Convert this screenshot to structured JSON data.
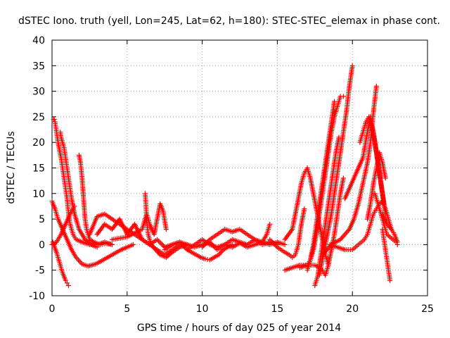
{
  "chart_data": {
    "type": "scatter",
    "title": "dSTEC Iono. truth (yell, Lon=245, Lat=62, h=180): STEC-STEC_elemax in phase cont.",
    "xlabel": "GPS time / hours of day 025 of year 2014",
    "ylabel": "dSTEC  / TECUs",
    "xlim": [
      0,
      25
    ],
    "ylim": [
      -10,
      40
    ],
    "xticks": [
      0,
      5,
      10,
      15,
      20,
      25
    ],
    "yticks": [
      -10,
      -5,
      0,
      5,
      10,
      15,
      20,
      25,
      30,
      35,
      40
    ],
    "xtick_labels": [
      "0",
      "5",
      "10",
      "15",
      "20",
      "25"
    ],
    "ytick_labels": [
      "-10",
      "-5",
      "0",
      "5",
      "10",
      "15",
      "20",
      "25",
      "30",
      "35",
      "40"
    ],
    "grid": true,
    "legend": "none",
    "marker": "+",
    "color": "#ff0000",
    "series": [
      {
        "x": [
          0.05,
          0.3,
          0.5,
          0.7,
          0.9,
          1.0,
          1.1
        ],
        "y": [
          0.5,
          -1.5,
          -3.5,
          -5.5,
          -7,
          -7.5,
          -8
        ]
      },
      {
        "x": [
          0.0,
          0.2,
          0.4,
          0.7,
          1.0,
          1.3,
          1.6,
          2.0,
          2.4,
          2.9,
          3.4,
          4.0,
          4.6,
          5.0,
          5.4
        ],
        "y": [
          8.5,
          7,
          5,
          3,
          1,
          -1,
          -2.5,
          -3.8,
          -4.2,
          -3.8,
          -3,
          -2,
          -1,
          -0.5,
          0
        ]
      },
      {
        "x": [
          0.1,
          0.15,
          0.2,
          0.3,
          0.4,
          0.5,
          0.6,
          0.7,
          0.8,
          0.9,
          1.0,
          1.1,
          1.2,
          1.4,
          1.6,
          2.0,
          2.5,
          3.0,
          3.5,
          4.0
        ],
        "y": [
          24.5,
          24.5,
          24,
          22,
          20,
          18.5,
          17,
          15,
          13,
          11,
          9,
          6,
          4,
          2,
          1,
          0.5,
          0,
          0,
          0.5,
          0
        ]
      },
      {
        "x": [
          0.55,
          0.6,
          0.7,
          0.8,
          0.9,
          1.0,
          1.1,
          1.2,
          1.3,
          1.5,
          1.8,
          2.2,
          2.6,
          3.0
        ],
        "y": [
          22,
          21,
          20,
          19,
          17,
          15,
          13,
          11,
          9,
          6,
          3,
          1,
          0,
          -0.5
        ]
      },
      {
        "x": [
          0.0,
          0.3,
          0.6,
          0.9,
          1.2,
          1.5
        ],
        "y": [
          0,
          0.5,
          2,
          4,
          6,
          7.5
        ]
      },
      {
        "x": [
          1.8,
          1.9,
          2.0,
          2.1,
          2.2,
          2.3,
          2.5,
          2.8,
          3.2,
          3.6,
          4.0
        ],
        "y": [
          17.5,
          16,
          13,
          9,
          5,
          3,
          1,
          0.5,
          0,
          0.2,
          0
        ]
      },
      {
        "x": [
          2.5,
          3.0,
          3.5,
          4.0,
          4.5,
          5.0,
          5.5,
          6.0,
          6.5,
          7.0,
          7.5,
          8.0,
          8.5,
          9.0
        ],
        "y": [
          2,
          5.5,
          6,
          5,
          4,
          3,
          2,
          1,
          0,
          -1,
          -2,
          -1,
          0,
          0
        ]
      },
      {
        "x": [
          3.0,
          3.5,
          4.0,
          4.5,
          5.0,
          5.5,
          6.0,
          6.5,
          7.0,
          7.5,
          8.0,
          8.5,
          9.0,
          9.5,
          10.0,
          10.5,
          11.0,
          11.5,
          12.0,
          12.5,
          13.0,
          13.5,
          14.0,
          14.5,
          15.0
        ],
        "y": [
          2,
          4,
          3,
          5,
          2,
          4,
          1,
          0,
          1,
          -0.5,
          0,
          0.5,
          -1,
          0,
          1,
          0,
          -0.5,
          0,
          1,
          0.5,
          0,
          1,
          0,
          0.5,
          0
        ]
      },
      {
        "x": [
          4.0,
          5.0,
          6.0,
          6.3,
          6.5,
          6.8,
          7.0,
          7.2,
          7.4,
          7.6
        ],
        "y": [
          1,
          1.5,
          3,
          6,
          4,
          2,
          5,
          8,
          6.5,
          3
        ]
      },
      {
        "x": [
          6.2,
          6.25,
          6.3,
          6.4,
          6.6,
          6.9,
          7.2,
          7.6,
          8.0,
          8.5,
          9.0
        ],
        "y": [
          10,
          8,
          5,
          2,
          0,
          -1,
          -2,
          -2.5,
          -1.5,
          -0.5,
          0
        ]
      },
      {
        "x": [
          7.5,
          8.0,
          8.5,
          9.0,
          9.5,
          10.0,
          10.5,
          11.0,
          11.5,
          12.0,
          12.5,
          13.0,
          13.5,
          14.0,
          14.5,
          15.0,
          15.5
        ],
        "y": [
          -1,
          0,
          0.5,
          0,
          -0.5,
          0,
          0.5,
          -1,
          0,
          -0.5,
          0.3,
          -0.5,
          0,
          0.5,
          0,
          0.5,
          0
        ]
      },
      {
        "x": [
          9.0,
          9.3,
          9.6,
          9.9,
          10.2,
          10.5,
          10.8,
          11.1,
          11.4,
          11.7,
          12.0
        ],
        "y": [
          -1,
          -1.5,
          -2,
          -2.5,
          -2.8,
          -3,
          -2.5,
          -2,
          -1,
          -0.5,
          0
        ]
      },
      {
        "x": [
          10.0,
          10.5,
          11.0,
          11.5,
          12.0,
          12.5,
          13.0,
          13.5,
          14.0,
          14.3,
          14.5
        ],
        "y": [
          -0.5,
          1,
          2,
          3,
          2.5,
          3,
          2,
          1,
          0.5,
          2,
          4
        ]
      },
      {
        "x": [
          14.5,
          15.0,
          15.5,
          15.8,
          16.0,
          16.2,
          16.4,
          16.6,
          16.8
        ],
        "y": [
          1,
          -0.5,
          -1.5,
          -2,
          -2.5,
          -2,
          0,
          4,
          7
        ]
      },
      {
        "x": [
          15.5,
          16.0,
          16.2,
          16.4,
          16.6,
          16.8,
          17.0,
          17.2,
          17.4,
          17.6,
          17.8,
          18.0,
          18.2,
          18.4
        ],
        "y": [
          1,
          3,
          6,
          9,
          12,
          14,
          15,
          13,
          10,
          7,
          4,
          1,
          -2,
          -4
        ]
      },
      {
        "x": [
          15.5,
          16.0,
          16.5,
          17.0,
          17.2,
          17.4,
          17.6,
          17.8,
          18.0,
          18.2,
          18.4,
          18.6,
          18.8,
          19.0,
          19.2,
          19.4
        ],
        "y": [
          -5,
          -4.5,
          -4,
          -4,
          -3,
          -1,
          2,
          6,
          10,
          14,
          18,
          22,
          25,
          27,
          29,
          29
        ]
      },
      {
        "x": [
          16.5,
          17.0,
          17.5,
          17.8,
          18.0,
          18.2,
          18.4,
          18.6,
          18.8,
          19.0,
          19.2,
          19.4
        ],
        "y": [
          -4.5,
          -4,
          -4,
          -4.5,
          -5,
          -6,
          -4,
          -1,
          2,
          6,
          10,
          13
        ]
      },
      {
        "x": [
          17.0,
          17.2,
          17.4,
          17.6,
          17.8,
          18.0,
          18.2,
          18.4,
          18.6,
          18.8
        ],
        "y": [
          -5,
          -3,
          0,
          4,
          8,
          12,
          16,
          20,
          24,
          28
        ]
      },
      {
        "x": [
          17.5,
          17.7,
          17.9,
          18.1,
          18.3,
          18.5,
          18.7,
          18.9,
          19.1
        ],
        "y": [
          -8,
          -6,
          -2,
          2,
          6,
          10,
          14,
          18,
          21
        ]
      },
      {
        "x": [
          17.8,
          18.0,
          18.2,
          18.4,
          18.6,
          18.8,
          19.0,
          19.2,
          19.4,
          19.6,
          19.8,
          20.0
        ],
        "y": [
          -6,
          -3,
          0,
          3,
          6,
          10,
          14,
          18,
          22,
          26,
          31,
          35
        ]
      },
      {
        "x": [
          18.0,
          18.3,
          18.6,
          18.9,
          19.2,
          19.5,
          19.8,
          20.1,
          20.4,
          20.7,
          21.0,
          21.2,
          21.4,
          21.6
        ],
        "y": [
          -2,
          -1,
          0,
          0.5,
          1,
          2,
          3,
          5,
          8,
          12,
          16,
          20,
          26,
          31
        ]
      },
      {
        "x": [
          18.5,
          19.0,
          19.5,
          20.0,
          20.2,
          20.4,
          20.6,
          20.8,
          21.0,
          21.2,
          21.4,
          21.6,
          21.8,
          22.0,
          22.2,
          22.4,
          22.6
        ],
        "y": [
          0,
          -0.5,
          -1,
          -1,
          -0.5,
          0,
          0.5,
          1,
          2,
          4,
          6,
          7,
          8,
          8.5,
          7,
          5,
          3
        ]
      },
      {
        "x": [
          19.5,
          19.8,
          20.1,
          20.4,
          20.7,
          21.0,
          21.2,
          21.4,
          21.6,
          21.8,
          22.0,
          22.2
        ],
        "y": [
          9,
          11,
          13,
          15,
          17,
          22,
          25,
          22,
          18,
          14,
          10,
          6
        ]
      },
      {
        "x": [
          20.5,
          20.7,
          20.9,
          21.1,
          21.3,
          21.5,
          21.7,
          21.9,
          22.1
        ],
        "y": [
          20,
          22,
          24,
          25,
          23,
          20,
          16,
          12,
          8
        ]
      },
      {
        "x": [
          21.0,
          21.2,
          21.4,
          21.6,
          21.8,
          22.0,
          22.2
        ],
        "y": [
          5,
          8,
          12,
          15,
          18,
          16,
          13
        ]
      },
      {
        "x": [
          21.5,
          21.7,
          21.9,
          22.1,
          22.3,
          22.5,
          22.7,
          22.9,
          23.0
        ],
        "y": [
          10,
          8,
          6,
          4,
          2,
          1.5,
          1,
          0.5,
          0
        ]
      },
      {
        "x": [
          22.0,
          22.1,
          22.2,
          22.3,
          22.4,
          22.5
        ],
        "y": [
          3,
          1,
          -1,
          -3,
          -5,
          -7
        ]
      },
      {
        "x": [
          22.0,
          22.3,
          22.6,
          22.8,
          23.0
        ],
        "y": [
          6,
          4,
          3,
          2,
          0.5
        ]
      }
    ]
  }
}
